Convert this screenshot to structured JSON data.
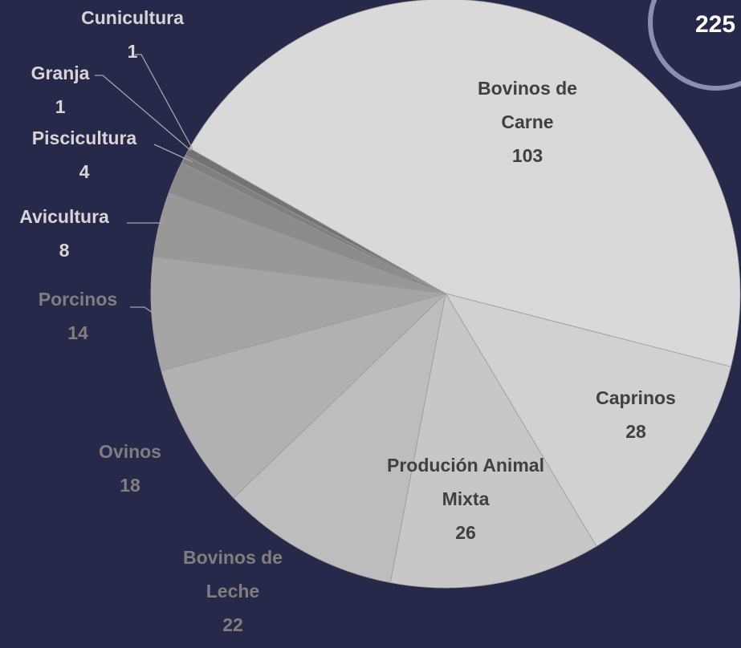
{
  "chart_data": {
    "type": "pie",
    "categories": [
      "Bovinos de Carne",
      "Caprinos",
      "Produción Animal Mixta",
      "Bovinos de Leche",
      "Ovinos",
      "Porcinos",
      "Avicultura",
      "Piscicultura",
      "Granja",
      "Cunicultura"
    ],
    "values": [
      103,
      28,
      26,
      22,
      18,
      14,
      8,
      4,
      1,
      1
    ],
    "colors": [
      "#d9d9d9",
      "#d1d1d1",
      "#c7c7c7",
      "#bdbdbd",
      "#b1b1b1",
      "#a5a5a5",
      "#989898",
      "#8b8b8b",
      "#7f7f7f",
      "#737373"
    ],
    "total": 225
  }
}
